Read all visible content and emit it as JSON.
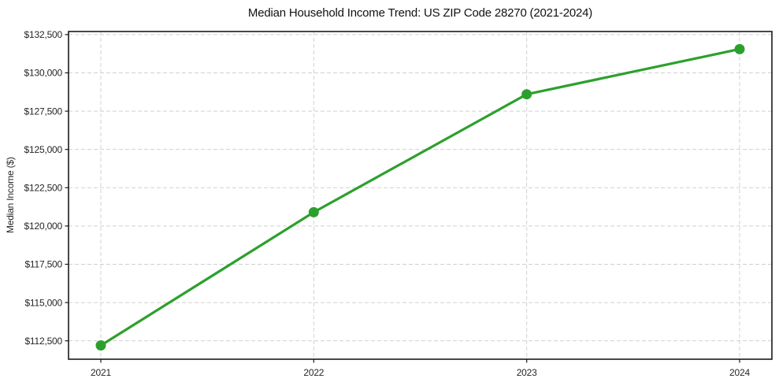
{
  "chart_data": {
    "type": "line",
    "title": "Median Household Income Trend: US ZIP Code 28270 (2021-2024)",
    "xlabel": "",
    "ylabel": "Median Income ($)",
    "categories": [
      "2021",
      "2022",
      "2023",
      "2024"
    ],
    "series": [
      {
        "name": "Median Household Income",
        "values": [
          112200,
          120900,
          128600,
          131550
        ]
      }
    ],
    "y_ticks": [
      {
        "value": 112500,
        "label": "$112,500"
      },
      {
        "value": 115000,
        "label": "$115,000"
      },
      {
        "value": 117500,
        "label": "$117,500"
      },
      {
        "value": 120000,
        "label": "$120,000"
      },
      {
        "value": 122500,
        "label": "$122,500"
      },
      {
        "value": 125000,
        "label": "$125,000"
      },
      {
        "value": 127500,
        "label": "$127,500"
      },
      {
        "value": 130000,
        "label": "$130,000"
      },
      {
        "value": 132500,
        "label": "$132,500"
      }
    ],
    "ylim": [
      111300,
      132700
    ],
    "grid": true,
    "grid_style": "dashed",
    "legend": "none",
    "colors": {
      "line": "#2ca02c",
      "marker": "#2ca02c",
      "grid": "#d0d0d0",
      "axis": "#1a1a1a",
      "tick_label": "#262626",
      "title": "#111111",
      "background": "#ffffff"
    }
  }
}
